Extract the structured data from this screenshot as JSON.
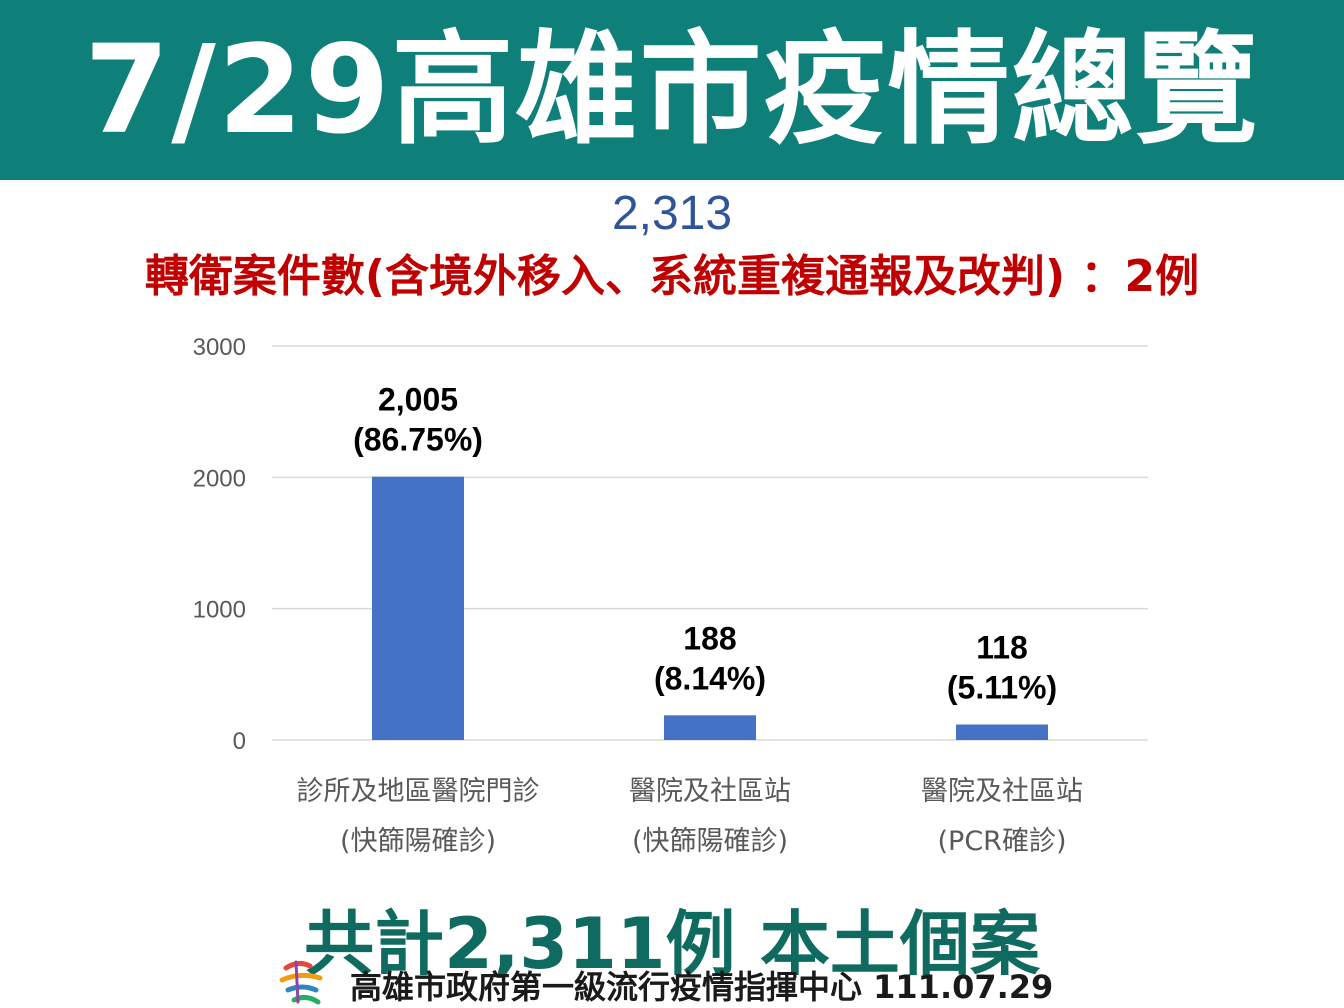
{
  "header": {
    "title": "7/29高雄市疫情總覽"
  },
  "summary": {
    "total": "2,313",
    "transfer_note": "轉衛案件數(含境外移入、系統重複通報及改判) ：2例"
  },
  "chart_data": {
    "type": "bar",
    "categories": [
      [
        "診所及地區醫院門診",
        "(快篩陽確診)"
      ],
      [
        "醫院及社區站",
        "(快篩陽確診)"
      ],
      [
        "醫院及社區站",
        "(PCR確診)"
      ]
    ],
    "values": [
      2005,
      188,
      118
    ],
    "data_labels": [
      [
        "2,005",
        "(86.75%)"
      ],
      [
        "188",
        "(8.14%)"
      ],
      [
        "118",
        "(5.11%)"
      ]
    ],
    "yticks": [
      "0",
      "1000",
      "2000",
      "3000"
    ],
    "ylim": [
      0,
      3000
    ],
    "grid": true,
    "bar_color": "#4472c4"
  },
  "footer": {
    "total": "共計2,311例 本土個案",
    "source": "高雄市政府第一級流行疫情指揮中心 111.07.29"
  },
  "colors": {
    "banner": "#0f7f7a",
    "total_blue": "#2f5597",
    "note_red": "#c00000",
    "footer_green": "#0f6b5f"
  }
}
